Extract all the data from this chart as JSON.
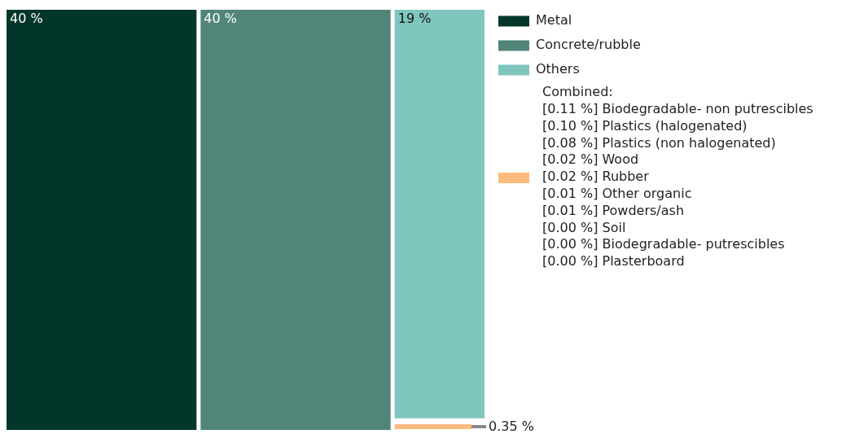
{
  "chart_data": {
    "type": "other",
    "categories": [
      "Metal",
      "Concrete/rubble",
      "Others",
      null
    ],
    "values": [
      40,
      40,
      19,
      0.35
    ],
    "value_labels": [
      "40 %",
      "40 %",
      "19 %",
      "0.35 %"
    ],
    "colors": [
      "#03362b",
      "#51857a",
      "#7fc6be",
      "#fdbb7d"
    ],
    "legend_title": "Combined:",
    "annotations": [
      "[0.11 %] Biodegradable- non putrescibles",
      "[0.10 %] Plastics (halogenated)",
      "[0.08 %] Plastics (non halogenated)",
      "[0.02 %] Wood",
      "[0.02 %] Rubber",
      "[0.01 %] Other organic",
      "[0.01 %] Powders/ash",
      "[0.00 %] Soil",
      "[0.00 %] Biodegradable- putrescibles",
      "[0.00 %] Plasterboard"
    ]
  }
}
